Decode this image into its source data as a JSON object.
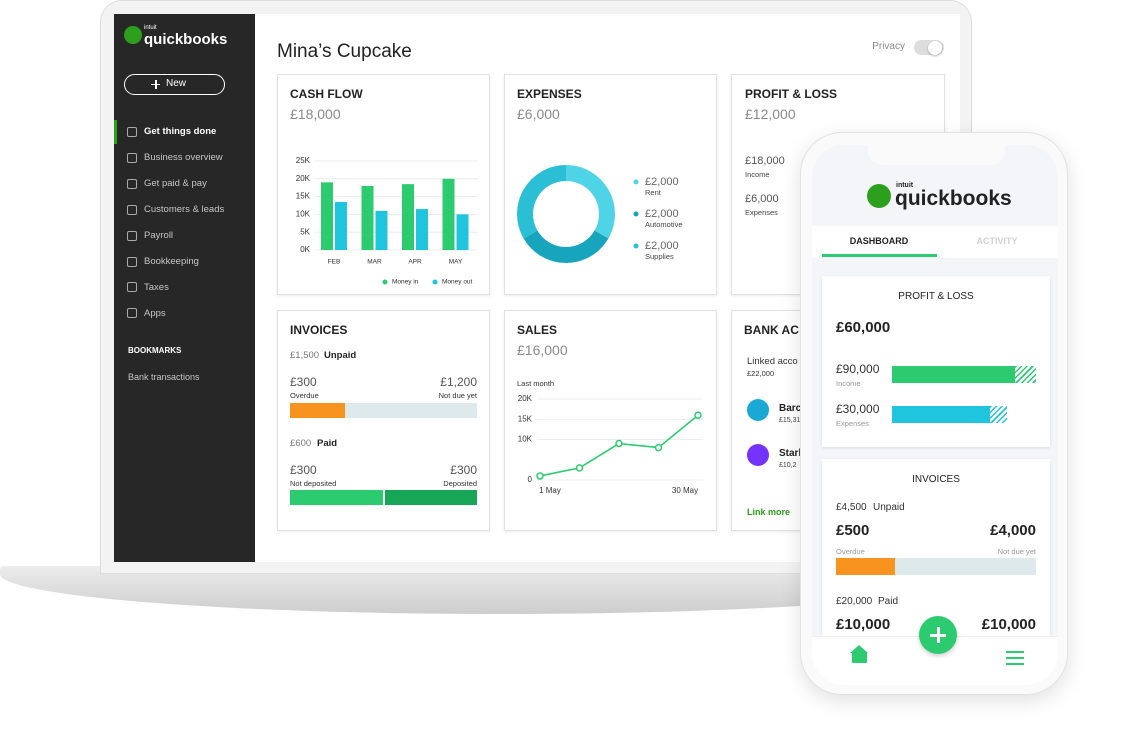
{
  "sidebar": {
    "logo_small": "intuit",
    "logo": "quickbooks",
    "new_button": "New",
    "nav": [
      "Get things done",
      "Business overview",
      "Get paid & pay",
      "Customers & leads",
      "Payroll",
      "Bookkeeping",
      "Taxes",
      "Apps"
    ],
    "bookmarks_title": "BOOKMARKS",
    "bookmarks": [
      "Bank transactions"
    ]
  },
  "header": {
    "title": "Mina’s Cupcake",
    "privacy": "Privacy"
  },
  "cash_flow": {
    "type": "bar",
    "title": "CASH FLOW",
    "total": "£18,000",
    "categories": [
      "FEB",
      "MAR",
      "APR",
      "MAY"
    ],
    "series": [
      {
        "name": "Money in",
        "color": "#2ccb6f",
        "values": [
          19000,
          18000,
          18500,
          20000
        ]
      },
      {
        "name": "Money out",
        "color": "#1fc5dc",
        "values": [
          13500,
          11000,
          11500,
          10000
        ]
      }
    ],
    "ylim": [
      0,
      25000
    ],
    "yticks": [
      {
        "value": 0,
        "label": "0K"
      },
      {
        "value": 5000,
        "label": "5K"
      },
      {
        "value": 10000,
        "label": "10K"
      },
      {
        "value": 15000,
        "label": "15K"
      },
      {
        "value": 20000,
        "label": "20K"
      },
      {
        "value": 25000,
        "label": "25K"
      }
    ],
    "grid": true
  },
  "expenses": {
    "type": "donut",
    "title": "EXPENSES",
    "total": "£6,000",
    "categories": [
      "Rent",
      "Automotive",
      "Supplies"
    ],
    "values": [
      2000,
      2000,
      2000
    ],
    "value_labels": [
      "£2,000",
      "£2,000",
      "£2,000"
    ],
    "colors": [
      "#4fd3e6",
      "#16a5bd",
      "#2bbfd5"
    ]
  },
  "profit_loss": {
    "title": "PROFIT & LOSS",
    "total": "£12,000",
    "income": "£18,000",
    "income_label": "Income",
    "expenses": "£6,000",
    "expenses_label": "Expenses"
  },
  "invoices": {
    "title": "INVOICES",
    "unpaid_amount": "£1,500",
    "unpaid_label": "Unpaid",
    "overdue": "£300",
    "overdue_label": "Overdue",
    "not_due": "£1,200",
    "not_due_label": "Not due yet",
    "paid_amount": "£600",
    "paid_label": "Paid",
    "not_deposited": "£300",
    "not_deposited_label": "Not deposited",
    "deposited": "£300",
    "deposited_label": "Deposited"
  },
  "sales": {
    "type": "line",
    "title": "SALES",
    "total": "£16,000",
    "subtitle": "Last month",
    "categories": [
      "1 May",
      null,
      null,
      null,
      "30 May"
    ],
    "values": [
      1000,
      3000,
      9000,
      8000,
      16000
    ],
    "color": "#2ccb6f",
    "ylim": [
      0,
      20000
    ],
    "yticks": [
      0,
      {
        "value": 10000,
        "label": "10K"
      },
      {
        "value": 15000,
        "label": "15K"
      },
      {
        "value": 20000,
        "label": "20K"
      }
    ],
    "grid": true
  },
  "bank_accounts": {
    "title": "BANK AC",
    "linked": "Linked acco",
    "linked_total": "£22,000",
    "accounts": [
      {
        "name": "Barc",
        "balance": "£15,31"
      },
      {
        "name": "Starl",
        "balance": "£10,2"
      }
    ],
    "link": "Link more"
  },
  "phone": {
    "logo_small": "intuit",
    "logo": "quickbooks",
    "tabs": [
      "DASHBOARD",
      "ACTIVITY"
    ],
    "profit_loss": {
      "title": "PROFIT & LOSS",
      "total": "£60,000",
      "income": "£90,000",
      "income_label": "Income",
      "expenses": "£30,000",
      "expenses_label": "Expenses"
    },
    "invoices": {
      "title": "INVOICES",
      "unpaid_amount": "£4,500",
      "unpaid_label": "Unpaid",
      "overdue": "£500",
      "overdue_label": "Overdue",
      "not_due": "£4,000",
      "not_due_label": "Not due yet",
      "paid_amount": "£20,000",
      "paid_label": "Paid",
      "not_deposited": "£10,000",
      "deposited": "£10,000"
    }
  }
}
